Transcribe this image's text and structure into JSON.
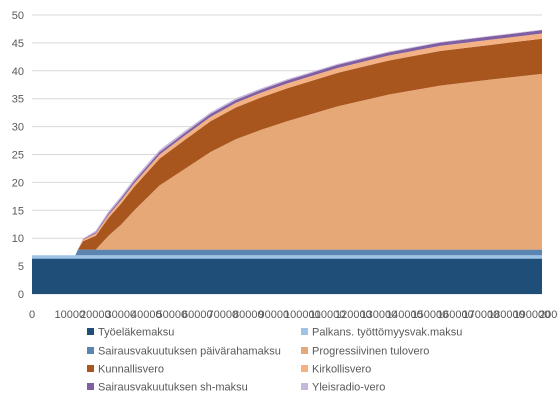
{
  "chart_data": {
    "type": "area",
    "stacked": true,
    "title": "",
    "xlabel": "",
    "ylabel": "",
    "xlim": [
      0,
      200000
    ],
    "ylim": [
      0,
      50
    ],
    "x_ticks": [
      0,
      10000,
      20000,
      30000,
      40000,
      50000,
      60000,
      70000,
      80000,
      90000,
      100000,
      110000,
      120000,
      130000,
      140000,
      150000,
      160000,
      170000,
      180000,
      190000,
      200000
    ],
    "y_ticks": [
      0,
      5,
      10,
      15,
      20,
      25,
      30,
      35,
      40,
      45,
      50
    ],
    "grid": "horizontal",
    "legend_position": "bottom",
    "x": [
      0,
      16000,
      17000,
      18000,
      20000,
      25000,
      30000,
      35000,
      40000,
      50000,
      60000,
      70000,
      80000,
      90000,
      100000,
      120000,
      140000,
      160000,
      180000,
      200000
    ],
    "series": [
      {
        "name": "Työeläkemaksu",
        "color": "#1f4e79",
        "values": [
          6.35,
          6.35,
          6.35,
          6.35,
          6.35,
          6.35,
          6.35,
          6.35,
          6.35,
          6.35,
          6.35,
          6.35,
          6.35,
          6.35,
          6.35,
          6.35,
          6.35,
          6.35,
          6.35,
          6.35
        ]
      },
      {
        "name": "Palkans. työttömyysvak.maksu",
        "color": "#9dc3e6",
        "values": [
          0.6,
          0.6,
          0.6,
          0.6,
          0.6,
          0.6,
          0.6,
          0.6,
          0.6,
          0.6,
          0.6,
          0.6,
          0.6,
          0.6,
          0.6,
          0.6,
          0.6,
          0.6,
          0.6,
          0.6
        ]
      },
      {
        "name": "Sairausvakuutuksen päivärahamaksu",
        "color": "#5b84b1",
        "values": [
          0,
          0,
          0,
          1.0,
          1.0,
          1.0,
          1.0,
          1.0,
          1.0,
          1.0,
          1.0,
          1.0,
          1.0,
          1.0,
          1.0,
          1.0,
          1.0,
          1.0,
          1.0,
          1.0
        ]
      },
      {
        "name": "Progressiivinen tulovero",
        "color": "#e7a878",
        "values": [
          0,
          0,
          0,
          0,
          0,
          0,
          2.5,
          4.5,
          7.0,
          11.5,
          14.5,
          17.5,
          19.8,
          21.5,
          23.0,
          25.7,
          27.8,
          29.4,
          30.5,
          31.5
        ]
      },
      {
        "name": "Kunnallisvero",
        "color": "#a9561e",
        "values": [
          0,
          0,
          0,
          0,
          1.5,
          2.5,
          3.2,
          3.8,
          4.2,
          4.8,
          5.2,
          5.5,
          5.7,
          5.8,
          5.9,
          6.0,
          6.1,
          6.2,
          6.2,
          6.3
        ]
      },
      {
        "name": "Kirkollisvero",
        "color": "#f4b183",
        "values": [
          0,
          0,
          0,
          0,
          0.3,
          0.4,
          0.5,
          0.6,
          0.65,
          0.72,
          0.77,
          0.8,
          0.83,
          0.85,
          0.87,
          0.88,
          0.9,
          0.92,
          0.93,
          0.94
        ]
      },
      {
        "name": "Sairausvakuutuksen sh-maksu",
        "color": "#7f5ea1",
        "values": [
          0,
          0,
          0,
          0,
          0.1,
          0.2,
          0.3,
          0.35,
          0.4,
          0.45,
          0.48,
          0.5,
          0.52,
          0.53,
          0.54,
          0.55,
          0.56,
          0.57,
          0.58,
          0.59
        ]
      },
      {
        "name": "Yleisradio-vero",
        "color": "#c6b7dd",
        "values": [
          0,
          0,
          0,
          0,
          0.05,
          0.3,
          0.35,
          0.38,
          0.4,
          0.38,
          0.35,
          0.3,
          0.27,
          0.25,
          0.22,
          0.18,
          0.15,
          0.13,
          0.11,
          0.1
        ]
      }
    ]
  }
}
